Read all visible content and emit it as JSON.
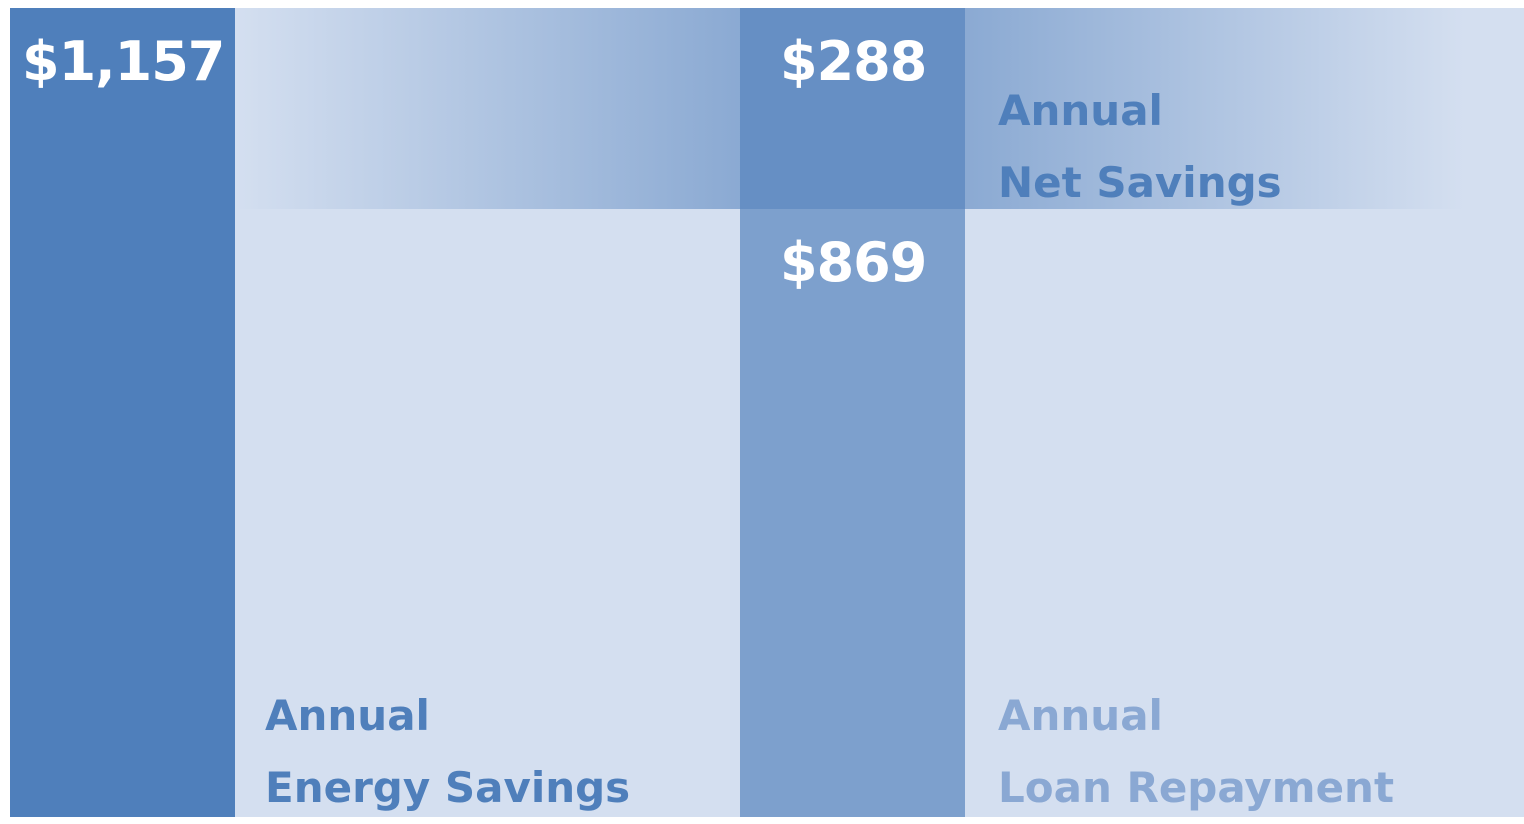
{
  "chart_data": {
    "type": "stacked-bar",
    "series": [
      {
        "name": "Annual\nEnergy Savings",
        "color": "#4f7fbb",
        "label_color": "#4f7fbb",
        "bar": 0,
        "values": [
          1157
        ],
        "value_labels": [
          "$1,157"
        ]
      },
      {
        "name": "Annual\nLoan Repayment",
        "color": "#7da0cd",
        "label_color": "#8aa8d3",
        "bar": 1,
        "values": [
          869
        ],
        "value_labels": [
          "$869"
        ]
      },
      {
        "name": "Annual\nNet Savings",
        "color": "#668fc4",
        "label_color": "#4f7fbb",
        "bar": 1,
        "values": [
          288
        ],
        "value_labels": [
          "$288"
        ]
      }
    ]
  }
}
